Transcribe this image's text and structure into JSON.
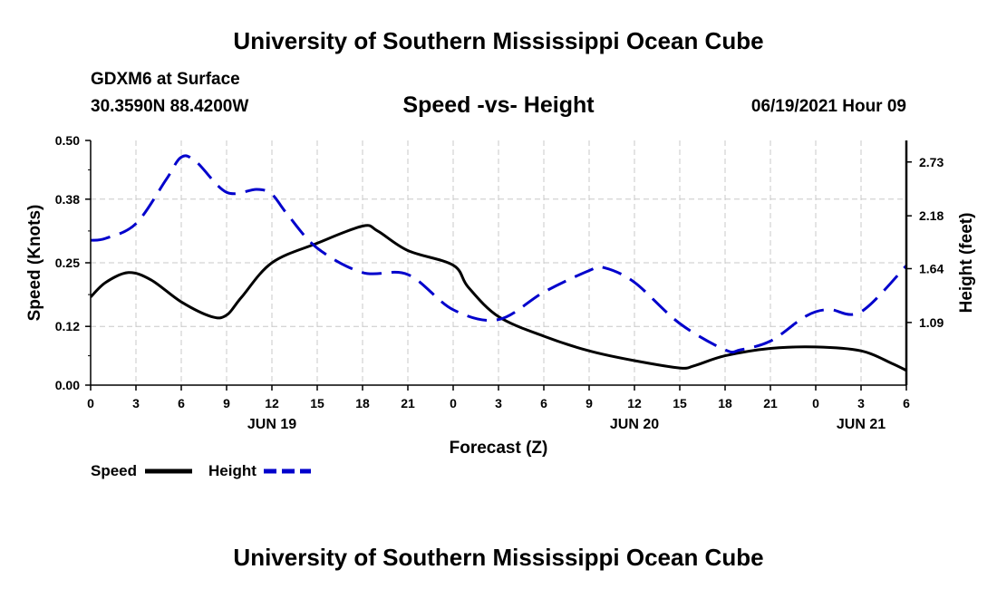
{
  "header": {
    "title": "University of Southern Mississippi Ocean Cube",
    "station": "GDXM6 at Surface",
    "coords": "30.3590N  88.4200W",
    "chart_title": "Speed -vs- Height",
    "valid_time": "06/19/2021 Hour 09"
  },
  "footer": {
    "title": "University of Southern Mississippi Ocean Cube"
  },
  "colors": {
    "speed": "#000000",
    "height": "#0000cc",
    "grid": "#c8c8c8"
  },
  "chart_data": {
    "type": "line",
    "title": "Speed -vs- Height",
    "xlabel": "Forecast (Z)",
    "ylabel": "Speed (Knots)",
    "y2label": "Height (feet)",
    "x_range": [
      0,
      54
    ],
    "ylim": [
      0,
      0.5
    ],
    "y_ticks": [
      "0.00",
      "0.12",
      "0.25",
      "0.38",
      "0.50"
    ],
    "y2lim": [
      0.45,
      2.95
    ],
    "y2_ticks": [
      1.09,
      1.64,
      2.18,
      2.73
    ],
    "x_ticks": [
      {
        "hour": 0,
        "label": "0"
      },
      {
        "hour": 3,
        "label": "3"
      },
      {
        "hour": 6,
        "label": "6"
      },
      {
        "hour": 9,
        "label": "9"
      },
      {
        "hour": 12,
        "label": "12"
      },
      {
        "hour": 15,
        "label": "15"
      },
      {
        "hour": 18,
        "label": "18"
      },
      {
        "hour": 21,
        "label": "21"
      },
      {
        "hour": 24,
        "label": "0"
      },
      {
        "hour": 27,
        "label": "3"
      },
      {
        "hour": 30,
        "label": "6"
      },
      {
        "hour": 33,
        "label": "9"
      },
      {
        "hour": 36,
        "label": "12"
      },
      {
        "hour": 39,
        "label": "15"
      },
      {
        "hour": 42,
        "label": "18"
      },
      {
        "hour": 45,
        "label": "21"
      },
      {
        "hour": 48,
        "label": "0"
      },
      {
        "hour": 51,
        "label": "3"
      },
      {
        "hour": 54,
        "label": "6"
      }
    ],
    "date_labels": [
      {
        "hour": 12,
        "label": "JUN 19"
      },
      {
        "hour": 36,
        "label": "JUN 20"
      },
      {
        "hour": 51,
        "label": "JUN 21"
      }
    ],
    "series": [
      {
        "name": "Speed",
        "axis": "left",
        "style": "solid",
        "x": [
          0,
          1,
          2.5,
          4,
          6,
          8,
          9,
          10,
          12,
          15,
          18,
          19,
          21,
          24,
          25,
          27,
          30,
          33,
          36,
          39,
          40,
          42,
          45,
          48,
          51,
          53,
          54
        ],
        "values": [
          0.18,
          0.21,
          0.23,
          0.215,
          0.17,
          0.14,
          0.143,
          0.18,
          0.25,
          0.29,
          0.325,
          0.315,
          0.275,
          0.245,
          0.2,
          0.14,
          0.1,
          0.07,
          0.05,
          0.035,
          0.04,
          0.06,
          0.075,
          0.078,
          0.07,
          0.045,
          0.03
        ]
      },
      {
        "name": "Height",
        "axis": "right",
        "style": "dashed",
        "x": [
          0,
          1,
          3,
          5,
          6,
          7,
          9,
          11,
          12,
          13,
          15,
          18,
          21,
          24,
          27,
          30,
          33,
          34,
          36,
          39,
          42,
          43,
          45,
          47,
          48,
          49,
          51,
          54
        ],
        "values": [
          1.93,
          1.95,
          2.1,
          2.55,
          2.78,
          2.73,
          2.42,
          2.45,
          2.4,
          2.2,
          1.85,
          1.6,
          1.58,
          1.22,
          1.12,
          1.4,
          1.62,
          1.65,
          1.5,
          1.08,
          0.81,
          0.81,
          0.9,
          1.12,
          1.2,
          1.22,
          1.2,
          1.67
        ]
      }
    ],
    "legend": [
      {
        "label": "Speed",
        "style": "solid"
      },
      {
        "label": "Height",
        "style": "dashed"
      }
    ],
    "legend_position": "bottom-left"
  }
}
